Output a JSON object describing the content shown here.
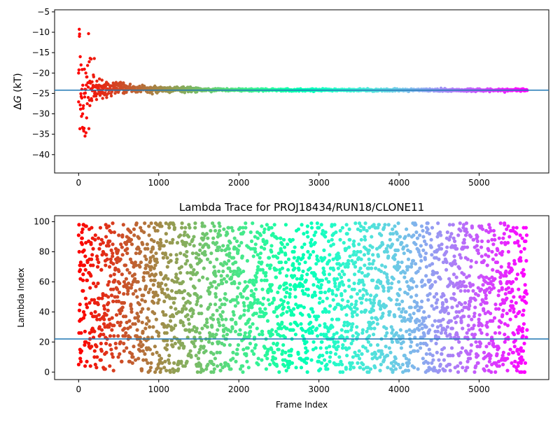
{
  "chart_data": [
    {
      "type": "scatter",
      "title": "",
      "xlabel": "",
      "ylabel": "ΔG (kT)",
      "ylabel_parts": {
        "symbol": "Δ",
        "var": "G",
        "unit": " (kT)"
      },
      "xlim": [
        -300,
        5870
      ],
      "ylim": [
        -44.5,
        -4.5
      ],
      "xticks": [
        0,
        1000,
        2000,
        3000,
        4000,
        5000
      ],
      "yticks": [
        -40,
        -35,
        -30,
        -25,
        -20,
        -15,
        -10,
        -5
      ],
      "hline": -24.2,
      "hline_color": "#1f77b4",
      "colormap": "rainbow (reversed: red at frame 0, violet at last frame)",
      "series": [
        {
          "x": [
            0,
            10,
            20,
            30,
            40,
            50,
            60,
            70,
            80,
            90,
            100,
            120,
            140,
            160,
            180,
            200,
            250,
            300,
            350,
            400,
            500,
            600,
            700,
            800,
            900,
            1000,
            1200,
            1400,
            1600,
            1800,
            2000,
            2200,
            2500,
            2800,
            3000,
            3500,
            4000,
            4500,
            5000,
            5600
          ],
          "y": [
            -20,
            -11,
            -16,
            -18,
            -24,
            -30,
            -28,
            -25,
            -24,
            -20,
            -31,
            -26,
            -22,
            -24,
            -23,
            -25,
            -23,
            -25,
            -26,
            -24,
            -24,
            -23.5,
            -24,
            -23.5,
            -23.5,
            -24,
            -23.5,
            -24,
            -24.1,
            -24,
            -23.8,
            -24,
            -24.2,
            -24.2,
            -24.3,
            -24.3,
            -24.4,
            -24.2,
            -24.3,
            -24.2
          ]
        }
      ]
    },
    {
      "type": "scatter",
      "title": "Lambda Trace for PROJ18434/RUN18/CLONE11",
      "xlabel": "Frame Index",
      "ylabel": "Lambda Index",
      "xlim": [
        -300,
        5870
      ],
      "ylim": [
        -5,
        104
      ],
      "xticks": [
        0,
        1000,
        2000,
        3000,
        4000,
        5000
      ],
      "yticks": [
        0,
        20,
        40,
        60,
        80,
        100
      ],
      "hline": 22,
      "hline_color": "#1f77b4",
      "colormap": "rainbow (reversed: red at frame 0, violet at last frame)",
      "series": [
        {
          "x_range": [
            0,
            5600
          ],
          "y_range": [
            0,
            99
          ],
          "note_points": "dense random scatter, approx. one point per frame"
        }
      ]
    }
  ]
}
